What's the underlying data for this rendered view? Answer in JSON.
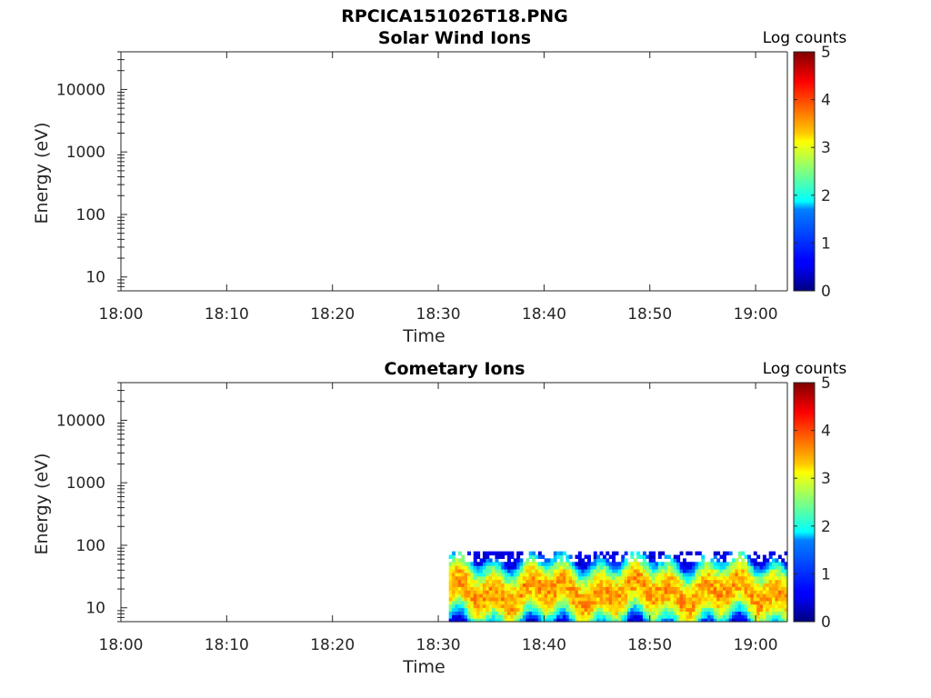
{
  "figure": {
    "filename": "RPCICA151026T18.PNG"
  },
  "chart_data": [
    {
      "type": "heatmap",
      "title": "Solar Wind Ions",
      "xlabel": "Time",
      "ylabel": "Energy (eV)",
      "x_ticks": [
        "18:00",
        "18:10",
        "18:20",
        "18:30",
        "18:40",
        "18:50",
        "19:00"
      ],
      "x_range": [
        "18:00",
        "19:03"
      ],
      "y_scale": "log",
      "y_ticks": [
        "10",
        "100",
        "1000",
        "10000"
      ],
      "y_range": [
        6,
        40000
      ],
      "colorbar": {
        "label": "Log counts",
        "range": [
          0,
          5
        ],
        "ticks": [
          "0",
          "1",
          "2",
          "3",
          "4",
          "5"
        ],
        "colormap": "jet"
      },
      "data": {
        "present": false
      },
      "grid": false
    },
    {
      "type": "heatmap",
      "title": "Cometary Ions",
      "xlabel": "Time",
      "ylabel": "Energy (eV)",
      "x_ticks": [
        "18:00",
        "18:10",
        "18:20",
        "18:30",
        "18:40",
        "18:50",
        "19:00"
      ],
      "x_range": [
        "18:00",
        "19:03"
      ],
      "y_scale": "log",
      "y_ticks": [
        "10",
        "100",
        "1000",
        "10000"
      ],
      "y_range": [
        6,
        40000
      ],
      "colorbar": {
        "label": "Log counts",
        "range": [
          0,
          5
        ],
        "ticks": [
          "0",
          "1",
          "2",
          "3",
          "4",
          "5"
        ],
        "colormap": "jet"
      },
      "data": {
        "present": true,
        "time_start": "18:31",
        "time_end": "19:03",
        "energy_min_eV": 6,
        "energy_max_eV": 80,
        "peak_energy_eV": 18,
        "typical_log_counts": [
          1.5,
          3.2
        ],
        "peak_log_counts": 3.6
      },
      "grid": false
    }
  ]
}
